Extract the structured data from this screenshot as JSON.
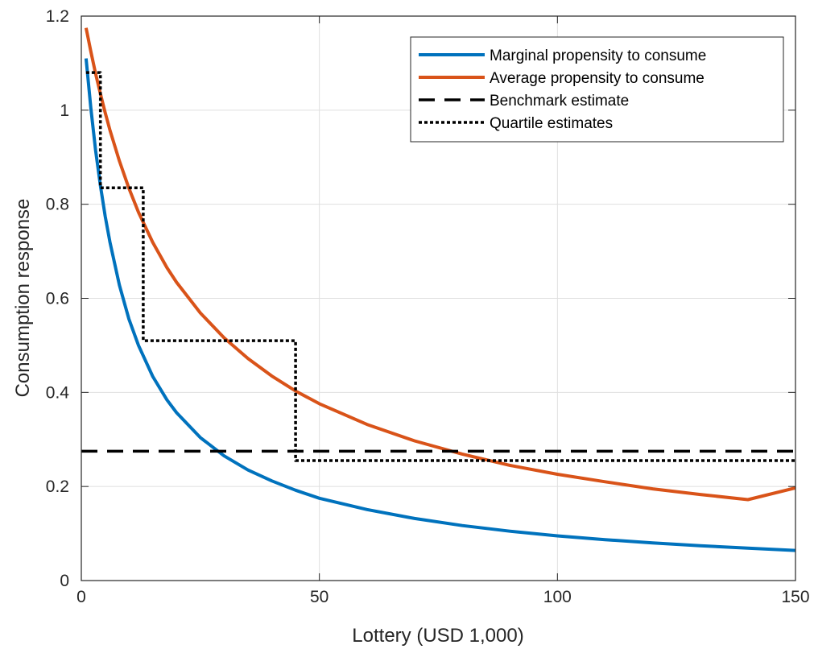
{
  "chart_data": {
    "type": "line",
    "xlabel": "Lottery (USD 1,000)",
    "ylabel": "Consumption response",
    "xlim": [
      0,
      150
    ],
    "ylim": [
      0,
      1.2
    ],
    "xticks": [
      0,
      50,
      100,
      150
    ],
    "xtick_labels": [
      "0",
      "50",
      "100",
      "150"
    ],
    "yticks": [
      0,
      0.2,
      0.4,
      0.6,
      0.8,
      1,
      1.2
    ],
    "ytick_labels": [
      "0",
      "0.2",
      "0.4",
      "0.6",
      "0.8",
      "1",
      "1.2"
    ],
    "grid": true,
    "legend_position": "top-right",
    "series": [
      {
        "name": "Marginal propensity to consume",
        "style": "solid",
        "color": "#0072BD",
        "x": [
          1,
          2,
          3,
          4,
          5,
          6,
          8,
          10,
          12,
          15,
          18,
          20,
          25,
          30,
          35,
          40,
          45,
          50,
          60,
          70,
          80,
          90,
          100,
          110,
          120,
          130,
          140,
          150
        ],
        "y": [
          1.11,
          1.005,
          0.915,
          0.84,
          0.775,
          0.72,
          0.628,
          0.556,
          0.5,
          0.434,
          0.384,
          0.357,
          0.304,
          0.265,
          0.235,
          0.212,
          0.192,
          0.175,
          0.151,
          0.132,
          0.117,
          0.105,
          0.095,
          0.087,
          0.08,
          0.074,
          0.069,
          0.064
        ]
      },
      {
        "name": "Average propensity to consume",
        "style": "solid",
        "color": "#D95319",
        "x": [
          1,
          2,
          3,
          4,
          5,
          6,
          8,
          10,
          12,
          15,
          18,
          20,
          25,
          30,
          35,
          40,
          45,
          50,
          60,
          70,
          80,
          90,
          100,
          110,
          120,
          130,
          140,
          150
        ],
        "y": [
          1.175,
          1.125,
          1.078,
          1.035,
          0.995,
          0.958,
          0.892,
          0.834,
          0.783,
          0.719,
          0.665,
          0.634,
          0.569,
          0.516,
          0.472,
          0.435,
          0.403,
          0.376,
          0.332,
          0.297,
          0.269,
          0.245,
          0.226,
          0.21,
          0.195,
          0.183,
          0.172,
          0.197
        ]
      },
      {
        "name": "Benchmark estimate",
        "style": "dashed",
        "color": "#000000",
        "x": [
          0,
          150
        ],
        "y": [
          0.275,
          0.275
        ]
      },
      {
        "name": "Quartile estimates",
        "style": "dotted",
        "color": "#000000",
        "x": [
          1,
          4,
          4,
          13,
          13,
          45,
          45,
          150
        ],
        "y": [
          1.08,
          1.08,
          0.835,
          0.835,
          0.51,
          0.51,
          0.255,
          0.255
        ]
      }
    ]
  }
}
